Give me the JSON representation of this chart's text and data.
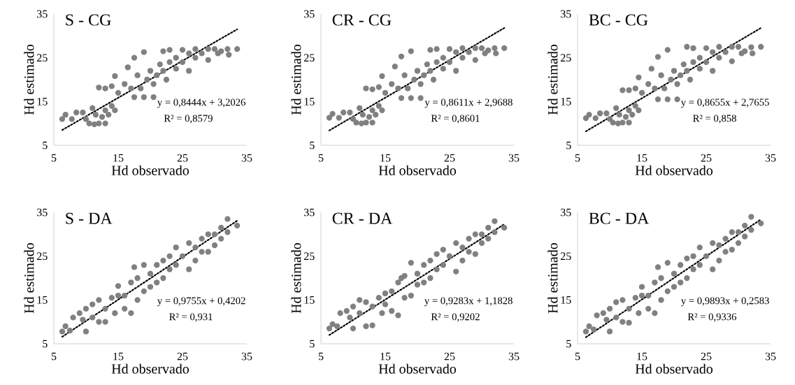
{
  "chart_data": [
    {
      "type": "scatter",
      "title": "S - CG",
      "xlabel": "Hd observado",
      "ylabel": "Hd estimado",
      "xlim": [
        5,
        35
      ],
      "ylim": [
        5,
        35
      ],
      "xticks": [
        5,
        15,
        25,
        35
      ],
      "yticks": [
        5,
        15,
        25,
        35
      ],
      "marker": "circle",
      "series": [
        {
          "color": "#808080",
          "x": [
            6.3,
            6.8,
            7.8,
            8.5,
            9.5,
            10,
            10.5,
            11,
            11.5,
            12,
            12.5,
            13,
            13.5,
            14,
            14.5,
            11.3,
            13,
            12,
            13,
            14,
            14.5,
            15,
            16,
            16.5,
            17,
            17.5,
            17.5,
            18,
            18.5,
            19,
            19,
            19.5,
            20,
            20.5,
            20.5,
            21,
            21.5,
            22,
            22,
            22.5,
            23,
            23,
            24,
            24,
            25,
            25,
            26,
            26,
            27,
            27,
            28,
            29,
            29,
            30,
            30.5,
            31,
            32,
            32.2,
            33.5
          ],
          "values": [
            11,
            12,
            11,
            12.5,
            12.5,
            11,
            10,
            13.5,
            12,
            10,
            11.5,
            13,
            12,
            14,
            13,
            9.8,
            10,
            18.2,
            18,
            18.5,
            20.8,
            17,
            19,
            22.8,
            18,
            25,
            16,
            21,
            18,
            26.3,
            16,
            20,
            22,
            16,
            19,
            21,
            23.5,
            22,
            26.5,
            20,
            24,
            26.8,
            25,
            22.5,
            26.8,
            24,
            26,
            22,
            27,
            25,
            26,
            27,
            24.5,
            27,
            26,
            26.5,
            27,
            25.7,
            27
          ]
        },
        {
          "type": "line",
          "color": "#000000",
          "line_style": "dotted",
          "marker": "none",
          "x": [
            6.3,
            33.5
          ],
          "values": [
            8.5,
            31.5
          ]
        }
      ],
      "annotations": [
        "y = 0,8444x  + 3,2026",
        "R² = 0,8579"
      ]
    },
    {
      "type": "scatter",
      "title": "CR - CG",
      "xlabel": "Hd observado",
      "ylabel": "Hd estimado",
      "xlim": [
        5,
        35
      ],
      "ylim": [
        5,
        35
      ],
      "xticks": [
        5,
        15,
        25,
        35
      ],
      "yticks": [
        5,
        15,
        25,
        35
      ],
      "marker": "circle",
      "series": [
        {
          "color": "#808080",
          "x": [
            6.3,
            6.8,
            7.8,
            8.5,
            9.5,
            10,
            10.5,
            11,
            11.5,
            12,
            12.5,
            13,
            13.5,
            14,
            14.5,
            11.3,
            13,
            12,
            13,
            14,
            14.5,
            15,
            16,
            16.5,
            17,
            17.5,
            17.5,
            18,
            18.5,
            19,
            19,
            19.5,
            20,
            20.5,
            20.5,
            21,
            21.5,
            22,
            22,
            22.5,
            23,
            23,
            24,
            24,
            25,
            25,
            26,
            26,
            27,
            27,
            28,
            29,
            29,
            30,
            30.5,
            31,
            32,
            32.2,
            33.5
          ],
          "values": [
            11.3,
            12.2,
            11.3,
            12.5,
            12.5,
            11,
            10.2,
            13.5,
            12,
            10.2,
            11.5,
            13,
            12,
            14,
            13,
            10,
            10.2,
            18,
            17.8,
            18.3,
            20.8,
            17,
            19,
            23,
            18,
            25.3,
            15.8,
            21,
            18,
            26.5,
            15.8,
            20,
            22,
            15.8,
            19,
            21,
            23.5,
            22,
            26.8,
            20,
            24,
            27,
            25,
            22.5,
            27,
            24,
            26.3,
            22,
            27.2,
            25,
            26.3,
            27.2,
            24.5,
            27.2,
            26,
            26.7,
            27.2,
            26,
            27.2
          ]
        },
        {
          "type": "line",
          "color": "#000000",
          "line_style": "dotted",
          "marker": "none",
          "x": [
            6.3,
            33.5
          ],
          "values": [
            8.4,
            31.8
          ]
        }
      ],
      "annotations": [
        "y = 0,8611x  + 2,9688",
        "R² = 0,8601"
      ]
    },
    {
      "type": "scatter",
      "title": "BC - CG",
      "xlabel": "Hd observado",
      "ylabel": "Hd estimado",
      "xlim": [
        5,
        35
      ],
      "ylim": [
        5,
        35
      ],
      "xticks": [
        5,
        15,
        25,
        35
      ],
      "yticks": [
        5,
        15,
        25,
        35
      ],
      "marker": "circle",
      "series": [
        {
          "color": "#808080",
          "x": [
            6.3,
            6.8,
            7.8,
            8.5,
            9.5,
            10,
            10.5,
            11,
            11.5,
            12,
            12.5,
            13,
            13.5,
            14,
            14.5,
            11.3,
            13,
            12,
            13,
            14,
            14.5,
            15,
            16,
            16.5,
            17,
            17.5,
            17.5,
            18,
            18.5,
            19,
            19,
            19.5,
            20,
            20.5,
            20.5,
            21,
            21.5,
            22,
            22,
            22.5,
            23,
            23,
            24,
            24,
            25,
            25,
            26,
            26,
            27,
            27,
            28,
            29,
            29,
            30,
            30.5,
            31,
            32,
            32.2,
            33.5
          ],
          "values": [
            11.2,
            12,
            11.2,
            12.3,
            12.3,
            11,
            10.2,
            13.5,
            12,
            10.2,
            11.5,
            13,
            12,
            14,
            13,
            10,
            10.2,
            17.6,
            17.6,
            18,
            20.5,
            17,
            19,
            22.5,
            18,
            25.2,
            15.5,
            21,
            18,
            26.8,
            15.5,
            20,
            22,
            15.5,
            19,
            21,
            23.5,
            22,
            27.5,
            20,
            24,
            27.2,
            25,
            22.5,
            27.2,
            24,
            26.3,
            22,
            27.5,
            25,
            26.3,
            27.5,
            24.2,
            27.5,
            26,
            26.5,
            27.4,
            26,
            27.5
          ]
        },
        {
          "type": "line",
          "color": "#000000",
          "line_style": "dotted",
          "marker": "none",
          "x": [
            6.3,
            33.5
          ],
          "values": [
            8.2,
            31.8
          ]
        }
      ],
      "annotations": [
        "y = 0,8655x  + 2,7655",
        "R² = 0,858"
      ]
    },
    {
      "type": "scatter",
      "title": "S - DA",
      "xlabel": "Hd observado",
      "ylabel": "Hd estimado",
      "xlim": [
        5,
        35
      ],
      "ylim": [
        5,
        35
      ],
      "xticks": [
        5,
        15,
        25,
        35
      ],
      "yticks": [
        5,
        15,
        25,
        35
      ],
      "marker": "circle",
      "series": [
        {
          "color": "#808080",
          "x": [
            6.3,
            6.8,
            7.5,
            8,
            9,
            9.5,
            10,
            10,
            11,
            11,
            12,
            12,
            13,
            13,
            14,
            14.5,
            15,
            15,
            16,
            16,
            17,
            17,
            17.5,
            18,
            18,
            19,
            19,
            20,
            20,
            21,
            21,
            22,
            22,
            23,
            23,
            24,
            24,
            25,
            26,
            26,
            27,
            27,
            28,
            28,
            29,
            29,
            30,
            30,
            31,
            31,
            32,
            32,
            33.5
          ],
          "values": [
            7.8,
            9,
            8,
            11,
            12,
            10.5,
            7.8,
            13,
            11,
            14,
            10,
            15,
            13,
            10,
            15.5,
            12,
            16,
            18.2,
            13,
            16,
            12,
            19,
            22.5,
            15,
            20,
            23,
            17,
            21,
            18,
            23,
            19,
            24,
            20,
            25,
            22,
            27,
            23,
            25,
            22,
            28,
            27,
            24,
            29,
            26,
            30,
            26,
            30,
            27.5,
            31.5,
            29,
            33.5,
            30.5,
            32
          ]
        },
        {
          "type": "line",
          "color": "#000000",
          "line_style": "dotted",
          "marker": "none",
          "x": [
            6.3,
            33.5
          ],
          "values": [
            6.6,
            33.1
          ]
        }
      ],
      "annotations": [
        "y = 0,9755x  + 0,4202",
        "R² = 0,931"
      ]
    },
    {
      "type": "scatter",
      "title": "CR - DA",
      "xlabel": "Hd observado",
      "ylabel": "Hd estimado",
      "xlim": [
        5,
        35
      ],
      "ylim": [
        5,
        35
      ],
      "xticks": [
        5,
        15,
        25,
        35
      ],
      "yticks": [
        5,
        15,
        25,
        35
      ],
      "marker": "circle",
      "series": [
        {
          "color": "#808080",
          "x": [
            6.3,
            6.8,
            7.5,
            8,
            9,
            9.5,
            10,
            10,
            11,
            11,
            12,
            12,
            13,
            13,
            14,
            14.5,
            15,
            15,
            16,
            16,
            17,
            17,
            17.5,
            18,
            18,
            19,
            19,
            20,
            20,
            21,
            21,
            22,
            22,
            23,
            23,
            24,
            24,
            25,
            26,
            26,
            27,
            27,
            28,
            28,
            29,
            29,
            30,
            30,
            31,
            31,
            32,
            32,
            33.5
          ],
          "values": [
            8.5,
            9.5,
            9,
            12,
            12.5,
            11,
            8.5,
            13.5,
            12,
            15,
            9,
            14.5,
            13.5,
            9.2,
            15.5,
            12,
            16.5,
            14,
            12.5,
            17,
            11.5,
            19,
            20,
            15.5,
            20.5,
            23.5,
            16,
            21,
            18.5,
            23,
            19,
            24,
            20,
            25.5,
            22,
            26.5,
            23,
            25,
            21.5,
            28,
            27,
            24,
            29,
            26,
            30,
            25.5,
            30,
            28,
            31.5,
            29,
            33,
            30.5,
            31.5
          ]
        },
        {
          "type": "line",
          "color": "#000000",
          "line_style": "dotted",
          "marker": "none",
          "x": [
            6.3,
            33.5
          ],
          "values": [
            7.0,
            32.3
          ]
        }
      ],
      "annotations": [
        "y = 0,9283x  + 1,1828",
        "R² = 0,9202"
      ]
    },
    {
      "type": "scatter",
      "title": "BC - DA",
      "xlabel": "Hd observado",
      "ylabel": "Hd estimado",
      "xlim": [
        5,
        35
      ],
      "ylim": [
        5,
        35
      ],
      "xticks": [
        5,
        15,
        25,
        35
      ],
      "yticks": [
        5,
        15,
        25,
        35
      ],
      "marker": "circle",
      "series": [
        {
          "color": "#808080",
          "x": [
            6.3,
            6.8,
            7.5,
            8,
            9,
            9.5,
            10,
            10,
            11,
            11,
            12,
            12,
            13,
            13,
            14,
            14.5,
            15,
            15,
            16,
            16,
            17,
            17,
            17.5,
            18,
            18,
            19,
            19,
            20,
            20,
            21,
            21,
            22,
            22,
            23,
            23,
            24,
            24,
            25,
            26,
            26,
            27,
            27,
            28,
            28,
            29,
            29,
            30,
            30,
            31,
            31,
            32,
            32,
            33.5
          ],
          "values": [
            7.8,
            9,
            8.3,
            11.5,
            12,
            10.5,
            7.8,
            13,
            11,
            14.5,
            10,
            15,
            13,
            9.8,
            15.5,
            12,
            16,
            18,
            13,
            16,
            12,
            19,
            22.5,
            15,
            20,
            23.5,
            17,
            21,
            18,
            23,
            19,
            24.5,
            20,
            25,
            22,
            27,
            23,
            25,
            22,
            28,
            27.5,
            24,
            29,
            26,
            30.5,
            26.5,
            30.5,
            28,
            32,
            29.5,
            34,
            31,
            32.5
          ]
        },
        {
          "type": "line",
          "color": "#000000",
          "line_style": "dotted",
          "marker": "none",
          "x": [
            6.3,
            33.5
          ],
          "values": [
            6.5,
            33.4
          ]
        }
      ],
      "annotations": [
        "y = 0,9893x  + 0,2583",
        "R² = 0,9336"
      ]
    }
  ]
}
